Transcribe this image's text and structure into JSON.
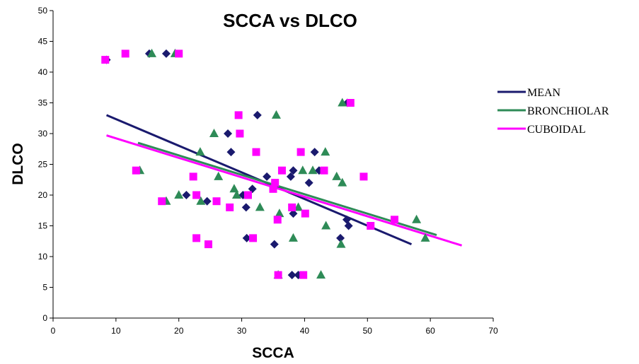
{
  "chart_data": {
    "type": "scatter",
    "title": "SCCA vs DLCO",
    "xlabel": "SCCA",
    "ylabel": "DLCO",
    "xlim": [
      0,
      70
    ],
    "ylim": [
      0,
      50
    ],
    "x_ticks": [
      0,
      10,
      20,
      30,
      40,
      50,
      60,
      70
    ],
    "y_ticks": [
      0,
      5,
      10,
      15,
      20,
      25,
      30,
      35,
      40,
      45,
      50
    ],
    "grid": false,
    "legend_position": "right",
    "series": [
      {
        "name": "MEAN",
        "marker": "diamond",
        "color": "#1A1A6E",
        "points": [
          [
            8.5,
            42
          ],
          [
            15.3,
            43
          ],
          [
            18,
            43
          ],
          [
            21.2,
            20
          ],
          [
            24.5,
            19
          ],
          [
            27.8,
            30
          ],
          [
            28.3,
            27
          ],
          [
            30.2,
            20
          ],
          [
            30.7,
            18
          ],
          [
            30.8,
            13
          ],
          [
            31.7,
            21
          ],
          [
            32.5,
            33
          ],
          [
            34,
            23
          ],
          [
            35.2,
            12
          ],
          [
            37.8,
            23
          ],
          [
            38.2,
            24
          ],
          [
            38.2,
            17
          ],
          [
            38,
            7
          ],
          [
            39,
            7
          ],
          [
            40.7,
            22
          ],
          [
            41.6,
            27
          ],
          [
            42.3,
            24
          ],
          [
            45.7,
            13
          ],
          [
            46.7,
            16
          ],
          [
            47,
            15
          ],
          [
            46.8,
            35
          ]
        ],
        "trendline": [
          [
            8.5,
            33
          ],
          [
            57,
            12
          ]
        ]
      },
      {
        "name": "BRONCHIOLAR",
        "marker": "triangle",
        "color": "#2E8B57",
        "points": [
          [
            13.8,
            24
          ],
          [
            15.7,
            43
          ],
          [
            18,
            19
          ],
          [
            19.4,
            43
          ],
          [
            20,
            20
          ],
          [
            23.4,
            27
          ],
          [
            23.5,
            19
          ],
          [
            25.6,
            30
          ],
          [
            26.3,
            23
          ],
          [
            28.8,
            21
          ],
          [
            29.2,
            20
          ],
          [
            32.9,
            18
          ],
          [
            35.5,
            33
          ],
          [
            35.8,
            7
          ],
          [
            36,
            17
          ],
          [
            38.2,
            13
          ],
          [
            39,
            18
          ],
          [
            39.7,
            24
          ],
          [
            41.3,
            24
          ],
          [
            42.6,
            7
          ],
          [
            43.3,
            27
          ],
          [
            43.4,
            15
          ],
          [
            45.1,
            23
          ],
          [
            45.8,
            12
          ],
          [
            46,
            22
          ],
          [
            46,
            35
          ],
          [
            57.8,
            16
          ],
          [
            59.2,
            13
          ]
        ],
        "trendline": [
          [
            13.5,
            28.5
          ],
          [
            61,
            13.5
          ]
        ]
      },
      {
        "name": "CUBOIDAL",
        "marker": "square",
        "color": "#FF00FF",
        "points": [
          [
            8.3,
            42
          ],
          [
            11.5,
            43
          ],
          [
            20,
            43
          ],
          [
            13.2,
            24
          ],
          [
            17.3,
            19
          ],
          [
            22.3,
            23
          ],
          [
            22.8,
            20
          ],
          [
            22.8,
            13
          ],
          [
            24.7,
            12
          ],
          [
            26,
            19
          ],
          [
            28.1,
            18
          ],
          [
            29.5,
            33
          ],
          [
            29.7,
            30
          ],
          [
            31,
            20
          ],
          [
            31.8,
            13
          ],
          [
            32.3,
            27
          ],
          [
            35,
            21
          ],
          [
            35.3,
            22
          ],
          [
            35.7,
            16
          ],
          [
            35.8,
            7
          ],
          [
            36.4,
            24
          ],
          [
            38,
            18
          ],
          [
            39.4,
            27
          ],
          [
            39.8,
            7
          ],
          [
            40.1,
            17
          ],
          [
            43.1,
            24
          ],
          [
            47.3,
            35
          ],
          [
            49.4,
            23
          ],
          [
            50.5,
            15
          ],
          [
            54.3,
            16
          ]
        ],
        "trendline": [
          [
            8.5,
            29.7
          ],
          [
            65,
            11.8
          ]
        ]
      }
    ]
  }
}
